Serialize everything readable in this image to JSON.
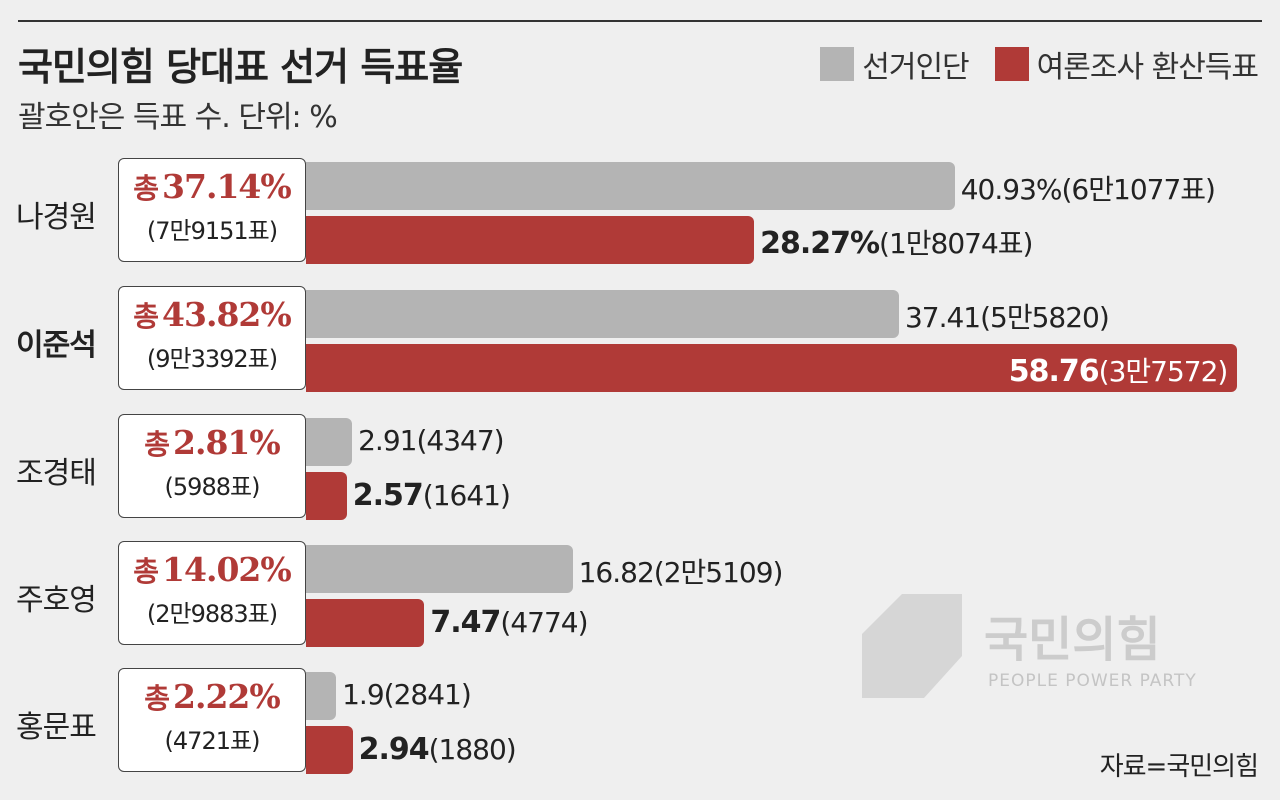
{
  "header": {
    "title": "국민의힘 당대표 선거 득표율",
    "subtitle": "괄호안은 득표 수. 단위: %"
  },
  "legend": {
    "items": [
      {
        "label": "선거인단",
        "color": "#b4b4b4"
      },
      {
        "label": "여론조사 환산득표",
        "color": "#b03a37"
      }
    ]
  },
  "source": "자료=국민의힘",
  "watermark": {
    "logo": "국민의힘",
    "sub": "PEOPLE POWER PARTY"
  },
  "chart_data": {
    "type": "bar",
    "categories": [
      "나경원",
      "이준석",
      "조경태",
      "주호영",
      "홍문표"
    ],
    "series": [
      {
        "name": "선거인단",
        "values": [
          40.93,
          37.41,
          2.91,
          16.82,
          1.9
        ]
      },
      {
        "name": "여론조사 환산득표",
        "values": [
          28.27,
          58.76,
          2.57,
          7.47,
          2.94
        ]
      }
    ],
    "xlim": [
      0,
      60
    ],
    "rows": [
      {
        "name": "나경원",
        "total_prefix": "총",
        "total": "37.14%",
        "total_votes": "(7만9151표)",
        "delegate_label": "40.93%",
        "delegate_votes": "(6만1077표)",
        "poll_label": "28.27%",
        "poll_votes": "(1만8074표)"
      },
      {
        "name": "이준석",
        "total_prefix": "총",
        "total": "43.82%",
        "total_votes": "(9만3392표)",
        "delegate_label": "37.41",
        "delegate_votes": "(5만5820)",
        "poll_label": "58.76",
        "poll_votes": "(3만7572)"
      },
      {
        "name": "조경태",
        "total_prefix": "총",
        "total": "2.81%",
        "total_votes": "(5988표)",
        "delegate_label": "2.91",
        "delegate_votes": "(4347)",
        "poll_label": "2.57",
        "poll_votes": "(1641)"
      },
      {
        "name": "주호영",
        "total_prefix": "총",
        "total": "14.02%",
        "total_votes": "(2만9883표)",
        "delegate_label": "16.82",
        "delegate_votes": "(2만5109)",
        "poll_label": "7.47",
        "poll_votes": "(4774)"
      },
      {
        "name": "홍문표",
        "total_prefix": "총",
        "total": "2.22%",
        "total_votes": "(4721표)",
        "delegate_label": "1.9",
        "delegate_votes": "(2841)",
        "poll_label": "2.94",
        "poll_votes": "(1880)"
      }
    ]
  }
}
